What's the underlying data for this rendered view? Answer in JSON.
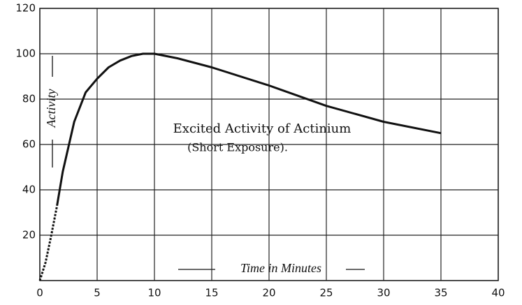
{
  "chart_data": {
    "type": "line",
    "title": "Excited Activity of Actinium",
    "subtitle": "(Short Exposure).",
    "ylabel": "Activity",
    "xlabel": "Time in Minutes",
    "series": [
      {
        "x": [
          0,
          0.5,
          1,
          1.5
        ],
        "values": [
          0,
          8,
          20,
          33
        ],
        "color": "#111111",
        "dashed": true
      },
      {
        "x": [
          1.5,
          2,
          3,
          4,
          5,
          6,
          7,
          8,
          9,
          10,
          12,
          15,
          20,
          25,
          30,
          35
        ],
        "values": [
          33,
          48,
          70,
          83,
          89,
          94,
          97,
          99,
          100,
          100,
          98,
          94,
          86,
          77,
          70,
          65
        ],
        "color": "#111111",
        "dashed": false
      }
    ],
    "xlim": [
      0,
      40
    ],
    "xticks": [
      0,
      5,
      10,
      15,
      20,
      25,
      30,
      35,
      40
    ],
    "ylim": [
      0,
      120
    ],
    "yticks": [
      20,
      40,
      60,
      80,
      100,
      120
    ],
    "grid": true
  }
}
